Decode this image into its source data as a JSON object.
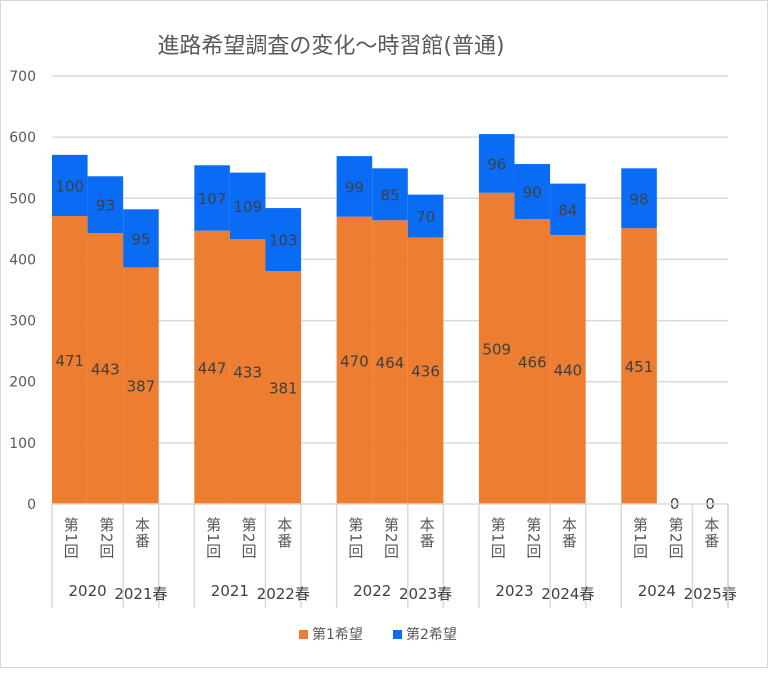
{
  "chart_data": {
    "type": "bar",
    "stacked": true,
    "title": "進路希望調査の変化～時習館(普通)",
    "ylim": [
      0,
      700
    ],
    "yticks": [
      0,
      100,
      200,
      300,
      400,
      500,
      600,
      700
    ],
    "grid": true,
    "legend_position": "bottom",
    "groups": [
      {
        "year": "2020",
        "spring": "2021春"
      },
      {
        "year": "2021",
        "spring": "2022春"
      },
      {
        "year": "2022",
        "spring": "2023春"
      },
      {
        "year": "2023",
        "spring": "2024春"
      },
      {
        "year": "2024",
        "spring": "2025春"
      }
    ],
    "sub_categories": [
      "第1回",
      "第2回",
      "本番"
    ],
    "series": [
      {
        "name": "第1希望",
        "color": "#ED7D31",
        "values": [
          471,
          443,
          387,
          447,
          433,
          381,
          470,
          464,
          436,
          509,
          466,
          440,
          451,
          0,
          0
        ]
      },
      {
        "name": "第2希望",
        "color": "#0A6CF5",
        "values": [
          100,
          93,
          95,
          107,
          109,
          103,
          99,
          85,
          70,
          96,
          90,
          84,
          98,
          0,
          0
        ]
      }
    ]
  }
}
